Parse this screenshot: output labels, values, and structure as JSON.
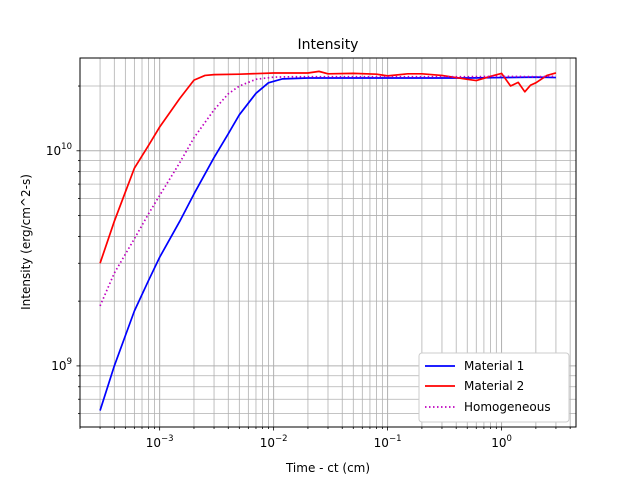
{
  "chart_data": {
    "type": "line",
    "title": "Intensity",
    "xlabel": "Time - ct (cm)",
    "ylabel": "Intensity (erg/cm^2-s)",
    "x_scale": "log",
    "y_scale": "log",
    "xlim": [
      0.0002,
      4.5
    ],
    "ylim": [
      520000000.0,
      27000000000.0
    ],
    "grid": true,
    "legend_placement": "lower-right",
    "x_major_ticks": [
      0.001,
      0.01,
      0.1,
      1
    ],
    "x_tick_labels": [
      "10−3",
      "10−2",
      "10−1",
      "100"
    ],
    "y_major_ticks": [
      1000000000.0,
      10000000000.0
    ],
    "y_tick_labels": [
      "109",
      "1010"
    ],
    "series": [
      {
        "name": "Material 1",
        "color": "#0000ff",
        "dash": "solid",
        "x": [
          0.0003,
          0.0004,
          0.0006,
          0.0008,
          0.001,
          0.0015,
          0.002,
          0.003,
          0.004,
          0.005,
          0.007,
          0.009,
          0.012,
          0.02,
          0.05,
          0.1,
          0.2,
          0.5,
          1.0,
          2.0,
          3.0
        ],
        "y": [
          620000000.0,
          1000000000.0,
          1800000000.0,
          2500000000.0,
          3200000000.0,
          4700000000.0,
          6300000000.0,
          9300000000.0,
          12000000000.0,
          14700000000.0,
          18500000000.0,
          20700000000.0,
          21600000000.0,
          21800000000.0,
          21800000000.0,
          21800000000.0,
          21800000000.0,
          21800000000.0,
          21900000000.0,
          22000000000.0,
          21900000000.0
        ]
      },
      {
        "name": "Material 2",
        "color": "#ff0000",
        "dash": "solid",
        "x": [
          0.0003,
          0.0004,
          0.0006,
          0.0008,
          0.001,
          0.0015,
          0.002,
          0.0025,
          0.003,
          0.005,
          0.01,
          0.02,
          0.025,
          0.03,
          0.05,
          0.08,
          0.1,
          0.15,
          0.2,
          0.3,
          0.5,
          0.6,
          0.8,
          1.0,
          1.2,
          1.4,
          1.6,
          1.8,
          2.0,
          2.5,
          3.0
        ],
        "y": [
          3000000000.0,
          4700000000.0,
          8300000000.0,
          10600000000.0,
          12900000000.0,
          17500000000.0,
          21300000000.0,
          22400000000.0,
          22600000000.0,
          22700000000.0,
          23000000000.0,
          23000000000.0,
          23400000000.0,
          22800000000.0,
          22900000000.0,
          22700000000.0,
          22300000000.0,
          22800000000.0,
          22800000000.0,
          22400000000.0,
          21500000000.0,
          21200000000.0,
          22200000000.0,
          22900000000.0,
          20000000000.0,
          20800000000.0,
          18800000000.0,
          20200000000.0,
          20700000000.0,
          22400000000.0,
          23000000000.0
        ]
      },
      {
        "name": "Homogeneous",
        "color": "#bf00bf",
        "dash": "dotted",
        "x": [
          0.0003,
          0.0004,
          0.0006,
          0.0008,
          0.001,
          0.0015,
          0.002,
          0.003,
          0.004,
          0.005,
          0.007,
          0.01,
          0.015,
          0.02,
          0.05,
          0.1,
          0.2,
          0.5,
          1.0,
          2.0,
          3.0
        ],
        "y": [
          1900000000.0,
          2700000000.0,
          3900000000.0,
          5100000000.0,
          6200000000.0,
          8800000000.0,
          11500000000.0,
          15500000000.0,
          18400000000.0,
          20000000000.0,
          21500000000.0,
          22000000000.0,
          22100000000.0,
          22100000000.0,
          22100000000.0,
          22100000000.0,
          22100000000.0,
          22100000000.0,
          22200000000.0,
          22100000000.0,
          22200000000.0
        ]
      }
    ]
  }
}
